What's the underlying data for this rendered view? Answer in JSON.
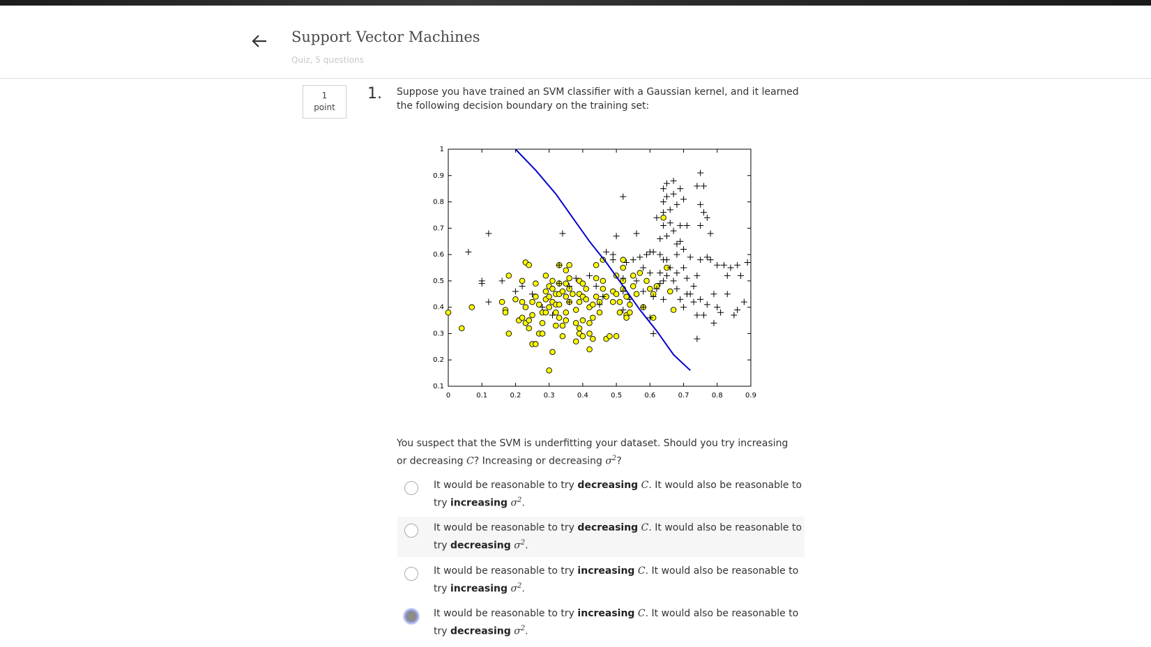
{
  "header": {
    "title": "Support Vector Machines",
    "subtitle": "Quiz, 5 questions",
    "back_icon": "arrow-left-icon"
  },
  "question": {
    "points_value": "1",
    "points_label": "point",
    "number": "1.",
    "prompt": "Suppose you have trained an SVM classifier with a Gaussian kernel, and it learned the following decision boundary on the training set:",
    "followup_a": "You suspect that the SVM is underfitting your dataset. Should you try increasing or decreasing ",
    "followup_c": "C",
    "followup_b": "? Increasing or decreasing ",
    "followup_sigma": "σ",
    "followup_sup": "2",
    "followup_end": "?"
  },
  "options": [
    {
      "pre": "It would be reasonable to try ",
      "word1": "decreasing",
      "var1": "C",
      "mid": ". It would also be reasonable to try ",
      "word2": "increasing",
      "var2": "σ",
      "sup": "2",
      "end": ".",
      "selected": false
    },
    {
      "pre": "It would be reasonable to try ",
      "word1": "decreasing",
      "var1": "C",
      "mid": ". It would also be reasonable to try ",
      "word2": "decreasing",
      "var2": "σ",
      "sup": "2",
      "end": ".",
      "selected": false
    },
    {
      "pre": "It would be reasonable to try ",
      "word1": "increasing",
      "var1": "C",
      "mid": ". It would also be reasonable to try ",
      "word2": "increasing",
      "var2": "σ",
      "sup": "2",
      "end": ".",
      "selected": false
    },
    {
      "pre": "It would be reasonable to try ",
      "word1": "increasing",
      "var1": "C",
      "mid": ". It would also be reasonable to try ",
      "word2": "decreasing",
      "var2": "σ",
      "sup": "2",
      "end": ".",
      "selected": true
    }
  ],
  "chart_data": {
    "type": "scatter",
    "title": "",
    "xlabel": "",
    "ylabel": "",
    "xlim": [
      0,
      0.9
    ],
    "ylim": [
      0.1,
      1
    ],
    "x_ticks": [
      "0",
      "0.1",
      "0.2",
      "0.3",
      "0.4",
      "0.5",
      "0.6",
      "0.7",
      "0.8",
      "0.9"
    ],
    "y_ticks": [
      "0.1",
      "0.2",
      "0.3",
      "0.4",
      "0.5",
      "0.6",
      "0.7",
      "0.8",
      "0.9",
      "1"
    ],
    "colors": {
      "circle_fill": "#ffff00",
      "boundary": "#0000cc",
      "axis": "#000000"
    },
    "boundary": [
      [
        0.2,
        1.0
      ],
      [
        0.26,
        0.92
      ],
      [
        0.32,
        0.83
      ],
      [
        0.37,
        0.74
      ],
      [
        0.42,
        0.65
      ],
      [
        0.47,
        0.57
      ],
      [
        0.52,
        0.48
      ],
      [
        0.57,
        0.39
      ],
      [
        0.62,
        0.31
      ],
      [
        0.67,
        0.22
      ],
      [
        0.72,
        0.16
      ]
    ],
    "series": [
      {
        "marker": "circle",
        "points": [
          [
            0,
            0.38
          ],
          [
            0.04,
            0.32
          ],
          [
            0.07,
            0.4
          ],
          [
            0.16,
            0.42
          ],
          [
            0.17,
            0.39
          ],
          [
            0.17,
            0.38
          ],
          [
            0.18,
            0.52
          ],
          [
            0.18,
            0.3
          ],
          [
            0.2,
            0.43
          ],
          [
            0.21,
            0.35
          ],
          [
            0.22,
            0.5
          ],
          [
            0.22,
            0.42
          ],
          [
            0.22,
            0.36
          ],
          [
            0.23,
            0.57
          ],
          [
            0.23,
            0.4
          ],
          [
            0.23,
            0.34
          ],
          [
            0.24,
            0.56
          ],
          [
            0.24,
            0.35
          ],
          [
            0.24,
            0.32
          ],
          [
            0.25,
            0.42
          ],
          [
            0.25,
            0.37
          ],
          [
            0.25,
            0.26
          ],
          [
            0.26,
            0.49
          ],
          [
            0.26,
            0.44
          ],
          [
            0.26,
            0.26
          ],
          [
            0.27,
            0.41
          ],
          [
            0.27,
            0.3
          ],
          [
            0.28,
            0.38
          ],
          [
            0.28,
            0.34
          ],
          [
            0.28,
            0.3
          ],
          [
            0.29,
            0.52
          ],
          [
            0.29,
            0.46
          ],
          [
            0.29,
            0.43
          ],
          [
            0.29,
            0.38
          ],
          [
            0.3,
            0.48
          ],
          [
            0.3,
            0.44
          ],
          [
            0.3,
            0.4
          ],
          [
            0.3,
            0.16
          ],
          [
            0.31,
            0.5
          ],
          [
            0.31,
            0.47
          ],
          [
            0.31,
            0.42
          ],
          [
            0.31,
            0.23
          ],
          [
            0.32,
            0.45
          ],
          [
            0.32,
            0.41
          ],
          [
            0.32,
            0.38
          ],
          [
            0.32,
            0.33
          ],
          [
            0.33,
            0.56
          ],
          [
            0.33,
            0.49
          ],
          [
            0.33,
            0.45
          ],
          [
            0.33,
            0.41
          ],
          [
            0.33,
            0.36
          ],
          [
            0.34,
            0.46
          ],
          [
            0.34,
            0.33
          ],
          [
            0.34,
            0.29
          ],
          [
            0.35,
            0.54
          ],
          [
            0.35,
            0.49
          ],
          [
            0.35,
            0.44
          ],
          [
            0.35,
            0.38
          ],
          [
            0.35,
            0.35
          ],
          [
            0.36,
            0.56
          ],
          [
            0.36,
            0.51
          ],
          [
            0.36,
            0.47
          ],
          [
            0.36,
            0.42
          ],
          [
            0.37,
            0.45
          ],
          [
            0.38,
            0.39
          ],
          [
            0.38,
            0.34
          ],
          [
            0.38,
            0.27
          ],
          [
            0.39,
            0.5
          ],
          [
            0.39,
            0.45
          ],
          [
            0.39,
            0.42
          ],
          [
            0.39,
            0.32
          ],
          [
            0.39,
            0.3
          ],
          [
            0.4,
            0.49
          ],
          [
            0.4,
            0.44
          ],
          [
            0.4,
            0.35
          ],
          [
            0.4,
            0.29
          ],
          [
            0.41,
            0.47
          ],
          [
            0.41,
            0.43
          ],
          [
            0.42,
            0.4
          ],
          [
            0.42,
            0.34
          ],
          [
            0.42,
            0.3
          ],
          [
            0.42,
            0.24
          ],
          [
            0.43,
            0.41
          ],
          [
            0.43,
            0.36
          ],
          [
            0.43,
            0.28
          ],
          [
            0.44,
            0.56
          ],
          [
            0.44,
            0.51
          ],
          [
            0.44,
            0.44
          ],
          [
            0.45,
            0.42
          ],
          [
            0.45,
            0.38
          ],
          [
            0.46,
            0.58
          ],
          [
            0.46,
            0.5
          ],
          [
            0.46,
            0.47
          ],
          [
            0.47,
            0.44
          ],
          [
            0.47,
            0.28
          ],
          [
            0.48,
            0.29
          ],
          [
            0.49,
            0.46
          ],
          [
            0.49,
            0.42
          ],
          [
            0.5,
            0.52
          ],
          [
            0.5,
            0.45
          ],
          [
            0.5,
            0.29
          ],
          [
            0.51,
            0.42
          ],
          [
            0.51,
            0.38
          ],
          [
            0.52,
            0.58
          ],
          [
            0.52,
            0.55
          ],
          [
            0.52,
            0.5
          ],
          [
            0.52,
            0.47
          ],
          [
            0.53,
            0.44
          ],
          [
            0.53,
            0.37
          ],
          [
            0.53,
            0.36
          ],
          [
            0.54,
            0.41
          ],
          [
            0.54,
            0.38
          ],
          [
            0.55,
            0.52
          ],
          [
            0.55,
            0.48
          ],
          [
            0.56,
            0.45
          ],
          [
            0.57,
            0.53
          ],
          [
            0.58,
            0.4
          ],
          [
            0.59,
            0.5
          ],
          [
            0.6,
            0.47
          ],
          [
            0.61,
            0.45
          ],
          [
            0.61,
            0.36
          ],
          [
            0.62,
            0.48
          ],
          [
            0.64,
            0.74
          ],
          [
            0.65,
            0.55
          ],
          [
            0.66,
            0.46
          ],
          [
            0.67,
            0.39
          ]
        ]
      },
      {
        "marker": "plus",
        "points": [
          [
            0.06,
            0.61
          ],
          [
            0.1,
            0.49
          ],
          [
            0.1,
            0.5
          ],
          [
            0.12,
            0.42
          ],
          [
            0.12,
            0.68
          ],
          [
            0.16,
            0.5
          ],
          [
            0.2,
            0.46
          ],
          [
            0.22,
            0.48
          ],
          [
            0.25,
            0.45
          ],
          [
            0.28,
            0.4
          ],
          [
            0.31,
            0.37
          ],
          [
            0.33,
            0.49
          ],
          [
            0.33,
            0.56
          ],
          [
            0.34,
            0.68
          ],
          [
            0.36,
            0.48
          ],
          [
            0.36,
            0.42
          ],
          [
            0.38,
            0.51
          ],
          [
            0.42,
            0.52
          ],
          [
            0.44,
            0.48
          ],
          [
            0.45,
            0.41
          ],
          [
            0.46,
            0.44
          ],
          [
            0.47,
            0.61
          ],
          [
            0.49,
            0.6
          ],
          [
            0.49,
            0.58
          ],
          [
            0.5,
            0.67
          ],
          [
            0.52,
            0.51
          ],
          [
            0.52,
            0.46
          ],
          [
            0.52,
            0.39
          ],
          [
            0.52,
            0.82
          ],
          [
            0.53,
            0.57
          ],
          [
            0.54,
            0.43
          ],
          [
            0.55,
            0.58
          ],
          [
            0.56,
            0.5
          ],
          [
            0.56,
            0.68
          ],
          [
            0.57,
            0.59
          ],
          [
            0.58,
            0.55
          ],
          [
            0.58,
            0.46
          ],
          [
            0.58,
            0.4
          ],
          [
            0.59,
            0.6
          ],
          [
            0.6,
            0.53
          ],
          [
            0.6,
            0.36
          ],
          [
            0.6,
            0.61
          ],
          [
            0.61,
            0.61
          ],
          [
            0.61,
            0.3
          ],
          [
            0.61,
            0.44
          ],
          [
            0.62,
            0.47
          ],
          [
            0.62,
            0.74
          ],
          [
            0.63,
            0.66
          ],
          [
            0.63,
            0.6
          ],
          [
            0.63,
            0.53
          ],
          [
            0.63,
            0.49
          ],
          [
            0.64,
            0.85
          ],
          [
            0.64,
            0.8
          ],
          [
            0.64,
            0.76
          ],
          [
            0.64,
            0.71
          ],
          [
            0.64,
            0.58
          ],
          [
            0.64,
            0.5
          ],
          [
            0.64,
            0.43
          ],
          [
            0.65,
            0.87
          ],
          [
            0.65,
            0.82
          ],
          [
            0.65,
            0.67
          ],
          [
            0.65,
            0.58
          ],
          [
            0.65,
            0.52
          ],
          [
            0.66,
            0.77
          ],
          [
            0.66,
            0.72
          ],
          [
            0.66,
            0.55
          ],
          [
            0.67,
            0.88
          ],
          [
            0.67,
            0.83
          ],
          [
            0.67,
            0.69
          ],
          [
            0.67,
            0.5
          ],
          [
            0.68,
            0.79
          ],
          [
            0.68,
            0.64
          ],
          [
            0.68,
            0.6
          ],
          [
            0.68,
            0.53
          ],
          [
            0.68,
            0.47
          ],
          [
            0.69,
            0.85
          ],
          [
            0.69,
            0.71
          ],
          [
            0.69,
            0.65
          ],
          [
            0.69,
            0.43
          ],
          [
            0.7,
            0.81
          ],
          [
            0.7,
            0.62
          ],
          [
            0.7,
            0.55
          ],
          [
            0.7,
            0.4
          ],
          [
            0.71,
            0.71
          ],
          [
            0.71,
            0.51
          ],
          [
            0.71,
            0.45
          ],
          [
            0.72,
            0.59
          ],
          [
            0.72,
            0.45
          ],
          [
            0.73,
            0.48
          ],
          [
            0.73,
            0.42
          ],
          [
            0.74,
            0.86
          ],
          [
            0.74,
            0.37
          ],
          [
            0.74,
            0.52
          ],
          [
            0.74,
            0.28
          ],
          [
            0.75,
            0.91
          ],
          [
            0.75,
            0.79
          ],
          [
            0.75,
            0.71
          ],
          [
            0.75,
            0.58
          ],
          [
            0.75,
            0.43
          ],
          [
            0.76,
            0.86
          ],
          [
            0.76,
            0.76
          ],
          [
            0.76,
            0.37
          ],
          [
            0.77,
            0.74
          ],
          [
            0.77,
            0.59
          ],
          [
            0.77,
            0.41
          ],
          [
            0.78,
            0.68
          ],
          [
            0.78,
            0.58
          ],
          [
            0.79,
            0.45
          ],
          [
            0.79,
            0.34
          ],
          [
            0.8,
            0.56
          ],
          [
            0.8,
            0.4
          ],
          [
            0.81,
            0.38
          ],
          [
            0.82,
            0.56
          ],
          [
            0.83,
            0.52
          ],
          [
            0.83,
            0.45
          ],
          [
            0.84,
            0.55
          ],
          [
            0.85,
            0.37
          ],
          [
            0.86,
            0.56
          ],
          [
            0.86,
            0.39
          ],
          [
            0.87,
            0.52
          ],
          [
            0.88,
            0.42
          ],
          [
            0.89,
            0.57
          ]
        ]
      }
    ]
  }
}
